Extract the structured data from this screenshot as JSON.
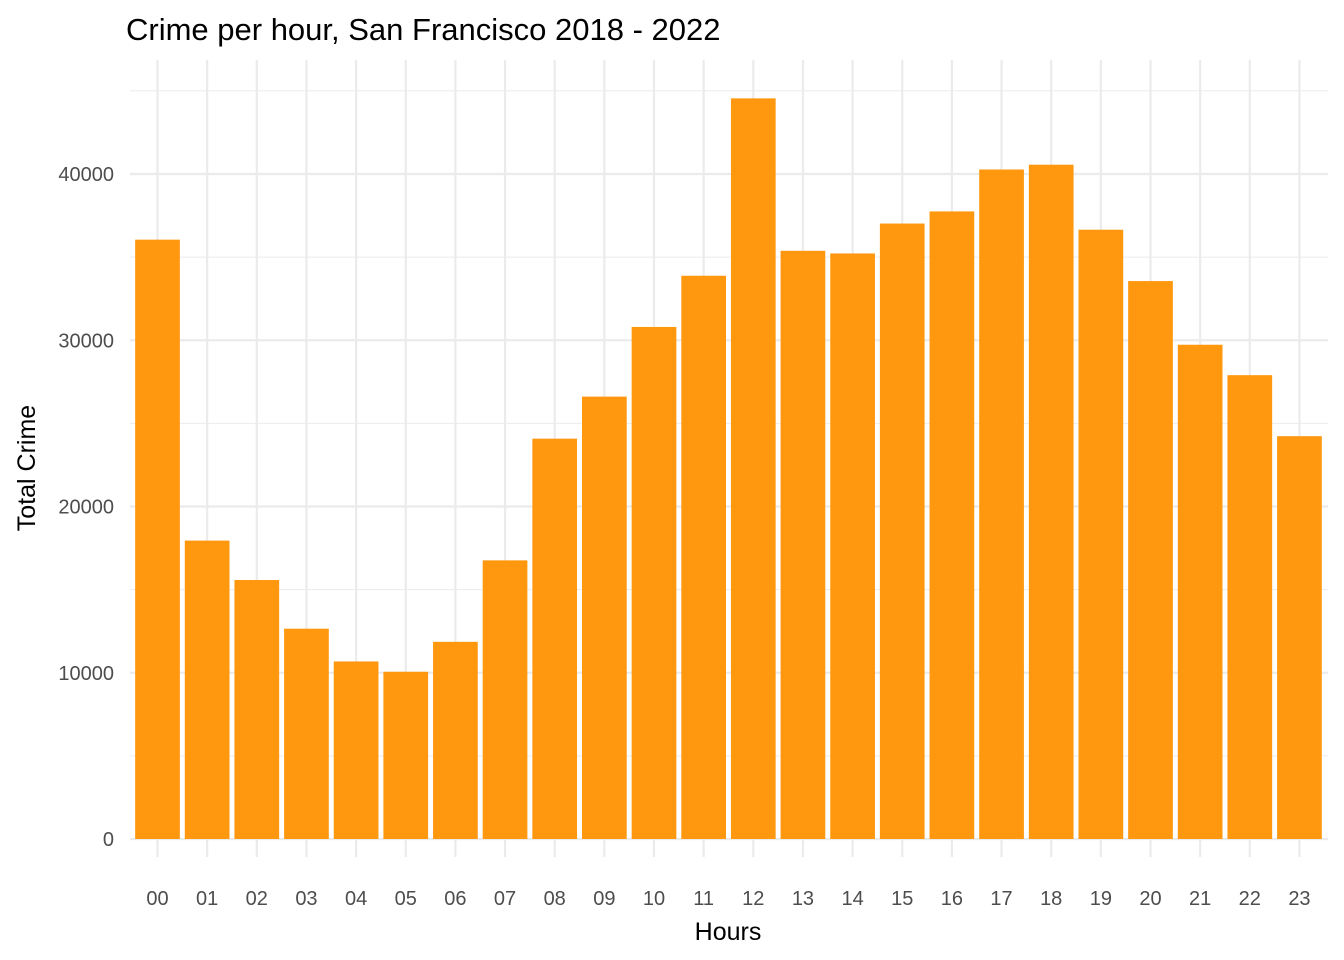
{
  "chart_data": {
    "type": "bar",
    "title": "Crime per hour, San Francisco 2018 - 2022",
    "xlabel": "Hours",
    "ylabel": "Total Crime",
    "categories": [
      "00",
      "01",
      "02",
      "03",
      "04",
      "05",
      "06",
      "07",
      "08",
      "09",
      "10",
      "11",
      "12",
      "13",
      "14",
      "15",
      "16",
      "17",
      "18",
      "19",
      "20",
      "21",
      "22",
      "23"
    ],
    "values": [
      36050,
      17950,
      15580,
      12650,
      10680,
      10060,
      11860,
      16760,
      24080,
      26610,
      30800,
      33880,
      44550,
      35380,
      35220,
      37020,
      37750,
      40270,
      40560,
      36650,
      33560,
      29730,
      27900,
      24230
    ],
    "ylim": [
      0,
      46650
    ],
    "yticks": [
      0,
      10000,
      20000,
      30000,
      40000
    ],
    "ytick_labels": [
      "0",
      "10000",
      "20000",
      "30000",
      "40000"
    ],
    "grid": true,
    "bar_color": "#ff980e",
    "legend": "none"
  }
}
